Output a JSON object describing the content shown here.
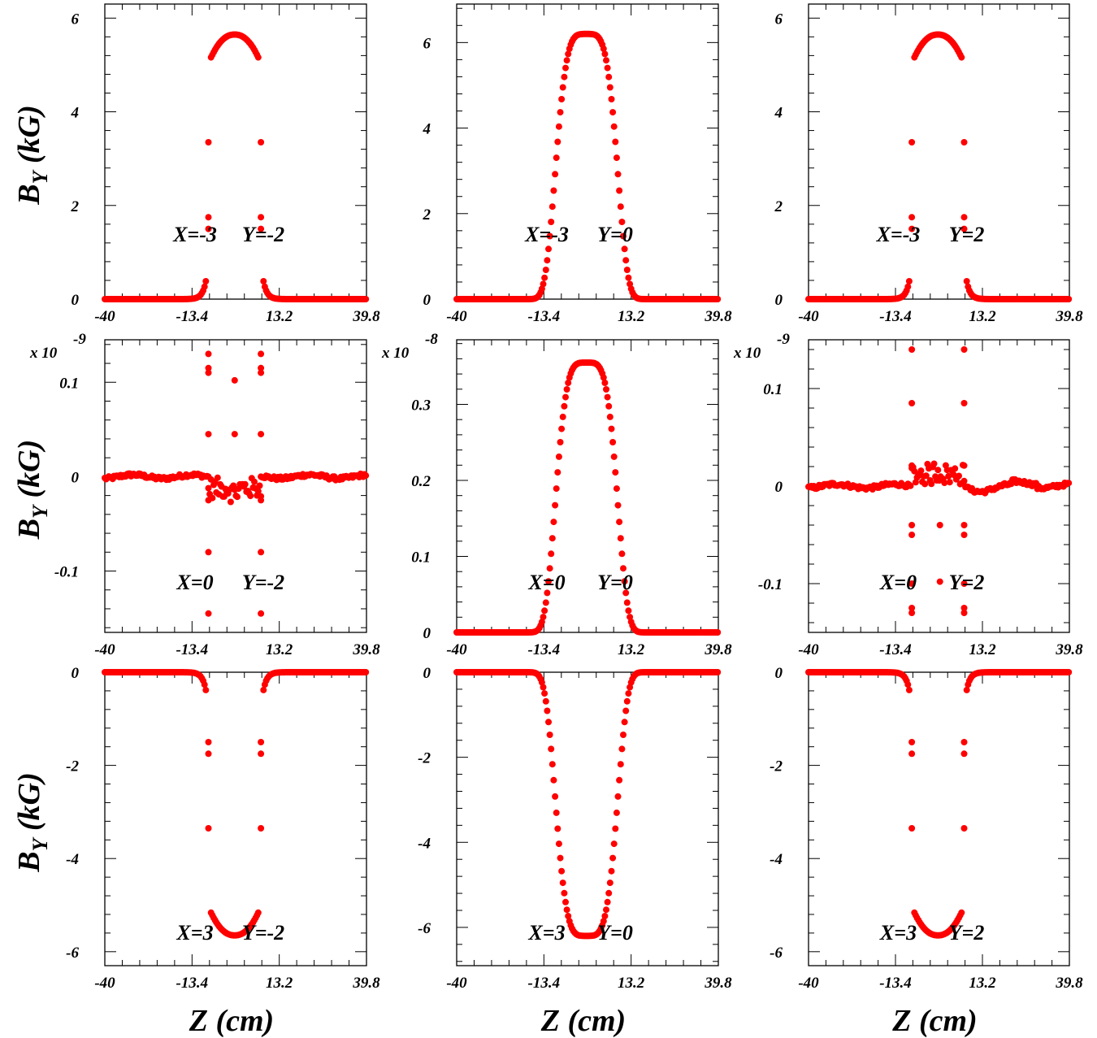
{
  "colors": {
    "marker": "#ff0000",
    "axes": "#000000",
    "background": "#ffffff"
  },
  "y_axis_title": {
    "main": "B",
    "sub": "Y",
    "unit": " (kG)"
  },
  "x_axis_title": "Z (cm)",
  "chart_data": [
    {
      "type": "scatter",
      "ann_x": "X=-3",
      "ann_y": "Y=-2",
      "profile": "plateau",
      "sign": 1,
      "exp_main": "",
      "exp_sup": "",
      "xlim": [
        -40,
        39.8
      ],
      "ylim": [
        0,
        6.3
      ],
      "x_ticks": [
        "-40",
        "-13.4",
        "13.2",
        "39.8"
      ],
      "y_ticks": [
        [
          "0",
          0
        ],
        [
          "2",
          2
        ],
        [
          "4",
          4
        ],
        [
          "6",
          6
        ]
      ]
    },
    {
      "type": "scatter",
      "ann_x": "X=-3",
      "ann_y": "Y=0",
      "profile": "bell",
      "sign": 1,
      "exp_main": "",
      "exp_sup": "",
      "xlim": [
        -40,
        39.8
      ],
      "ylim": [
        0,
        6.9
      ],
      "x_ticks": [
        "-40",
        "-13.4",
        "13.2",
        "39.8"
      ],
      "y_ticks": [
        [
          "0",
          0
        ],
        [
          "2",
          2
        ],
        [
          "4",
          4
        ],
        [
          "6",
          6
        ]
      ]
    },
    {
      "type": "scatter",
      "ann_x": "X=-3",
      "ann_y": "Y=2",
      "profile": "plateau",
      "sign": 1,
      "exp_main": "",
      "exp_sup": "",
      "xlim": [
        -40,
        39.8
      ],
      "ylim": [
        0,
        6.3
      ],
      "x_ticks": [
        "-40",
        "-13.4",
        "13.2",
        "39.8"
      ],
      "y_ticks": [
        [
          "0",
          0
        ],
        [
          "2",
          2
        ],
        [
          "4",
          4
        ],
        [
          "6",
          6
        ]
      ]
    },
    {
      "type": "scatter",
      "ann_x": "X=0",
      "ann_y": "Y=-2",
      "profile": "noise_neg",
      "sign": 1,
      "exp_main": "x 10",
      "exp_sup": "-9",
      "xlim": [
        -40,
        39.8
      ],
      "ylim": [
        -0.165,
        0.145
      ],
      "x_ticks": [
        "-40",
        "-13.4",
        "13.2",
        "39.8"
      ],
      "y_ticks": [
        [
          "-0.1",
          -0.1
        ],
        [
          "0",
          0
        ],
        [
          "0.1",
          0.1
        ]
      ]
    },
    {
      "type": "scatter",
      "ann_x": "X=0",
      "ann_y": "Y=0",
      "profile": "bell",
      "sign": 1,
      "exp_main": "x 10",
      "exp_sup": "-8",
      "xlim": [
        -40,
        39.8
      ],
      "ylim": [
        0,
        0.385
      ],
      "peak": 0.355,
      "x_ticks": [
        "-40",
        "-13.4",
        "13.2",
        "39.8"
      ],
      "y_ticks": [
        [
          "0",
          0
        ],
        [
          "0.1",
          0.1
        ],
        [
          "0.2",
          0.2
        ],
        [
          "0.3",
          0.3
        ]
      ]
    },
    {
      "type": "scatter",
      "ann_x": "X=0",
      "ann_y": "Y=2",
      "profile": "noise_pos",
      "sign": 1,
      "exp_main": "x 10",
      "exp_sup": "-9",
      "xlim": [
        -40,
        39.8
      ],
      "ylim": [
        -0.15,
        0.15
      ],
      "x_ticks": [
        "-40",
        "-13.4",
        "13.2",
        "39.8"
      ],
      "y_ticks": [
        [
          "-0.1",
          -0.1
        ],
        [
          "0",
          0
        ],
        [
          "0.1",
          0.1
        ]
      ]
    },
    {
      "type": "scatter",
      "ann_x": "X=3",
      "ann_y": "Y=-2",
      "profile": "plateau",
      "sign": -1,
      "exp_main": "",
      "exp_sup": "",
      "xlim": [
        -40,
        39.8
      ],
      "ylim": [
        -6.3,
        0
      ],
      "x_ticks": [
        "-40",
        "-13.4",
        "13.2",
        "39.8"
      ],
      "y_ticks": [
        [
          "0",
          0
        ],
        [
          "-2",
          -2
        ],
        [
          "-4",
          -4
        ],
        [
          "-6",
          -6
        ]
      ]
    },
    {
      "type": "scatter",
      "ann_x": "X=3",
      "ann_y": "Y=0",
      "profile": "bell",
      "sign": -1,
      "exp_main": "",
      "exp_sup": "",
      "xlim": [
        -40,
        39.8
      ],
      "ylim": [
        -6.9,
        0
      ],
      "x_ticks": [
        "-40",
        "-13.4",
        "13.2",
        "39.8"
      ],
      "y_ticks": [
        [
          "0",
          0
        ],
        [
          "-2",
          -2
        ],
        [
          "-4",
          -4
        ],
        [
          "-6",
          -6
        ]
      ]
    },
    {
      "type": "scatter",
      "ann_x": "X=3",
      "ann_y": "Y=2",
      "profile": "plateau",
      "sign": -1,
      "exp_main": "",
      "exp_sup": "",
      "xlim": [
        -40,
        39.8
      ],
      "ylim": [
        -6.3,
        0
      ],
      "x_ticks": [
        "-40",
        "-13.4",
        "13.2",
        "39.8"
      ],
      "y_ticks": [
        [
          "0",
          0
        ],
        [
          "-2",
          -2
        ],
        [
          "-4",
          -4
        ],
        [
          "-6",
          -6
        ]
      ]
    }
  ]
}
